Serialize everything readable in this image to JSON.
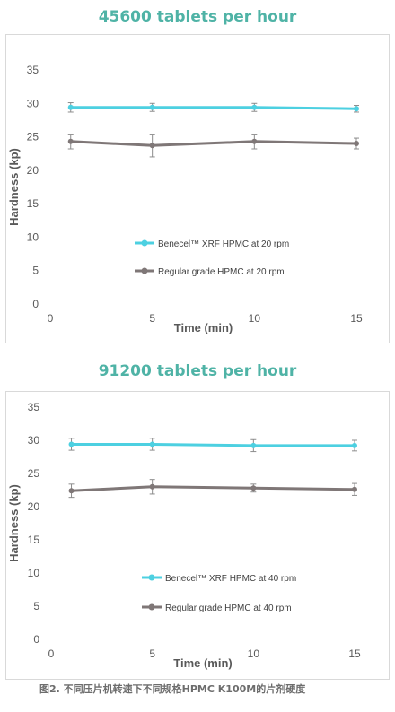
{
  "chart_data": [
    {
      "type": "line",
      "title": "45600 tablets per hour",
      "xlabel": "Time (min)",
      "ylabel": "Hardness (kp)",
      "xlim": [
        0,
        15
      ],
      "ylim": [
        0,
        35
      ],
      "xticks": [
        0,
        5,
        10,
        15
      ],
      "yticks": [
        0,
        5,
        10,
        15,
        20,
        25,
        30,
        35
      ],
      "grid": false,
      "legend_position": "center-right",
      "series": [
        {
          "name": "Benecel™ XRF HPMC at 20 rpm",
          "color": "#4dd0e1",
          "x": [
            1,
            5,
            10,
            15
          ],
          "y": [
            29.4,
            29.4,
            29.4,
            29.2
          ],
          "err": [
            0.7,
            0.6,
            0.6,
            0.5
          ]
        },
        {
          "name": "Regular grade HPMC at 20 rpm",
          "color": "#7f7777",
          "x": [
            1,
            5,
            10,
            15
          ],
          "y": [
            24.3,
            23.7,
            24.3,
            24.0
          ],
          "err": [
            1.1,
            1.7,
            1.1,
            0.8
          ]
        }
      ]
    },
    {
      "type": "line",
      "title": "91200 tablets per hour",
      "xlabel": "Time (min)",
      "ylabel": "Hardness (kp)",
      "xlim": [
        0,
        15
      ],
      "ylim": [
        0,
        35
      ],
      "xticks": [
        0,
        5,
        10,
        15
      ],
      "yticks": [
        0,
        5,
        10,
        15,
        20,
        25,
        30,
        35
      ],
      "grid": false,
      "legend_position": "center-right",
      "series": [
        {
          "name": "Benecel™ XRF HPMC at 40 rpm",
          "color": "#4dd0e1",
          "x": [
            1,
            5,
            10,
            15
          ],
          "y": [
            29.4,
            29.4,
            29.2,
            29.2
          ],
          "err": [
            0.9,
            0.9,
            0.9,
            0.8
          ]
        },
        {
          "name": "Regular grade HPMC at 40 rpm",
          "color": "#7f7777",
          "x": [
            1,
            5,
            10,
            15
          ],
          "y": [
            22.4,
            23.0,
            22.8,
            22.6
          ],
          "err": [
            1.0,
            1.1,
            0.6,
            0.9
          ]
        }
      ]
    }
  ],
  "caption": "图2. 不同压片机转速下不同规格HPMC K100M的片剂硬度"
}
